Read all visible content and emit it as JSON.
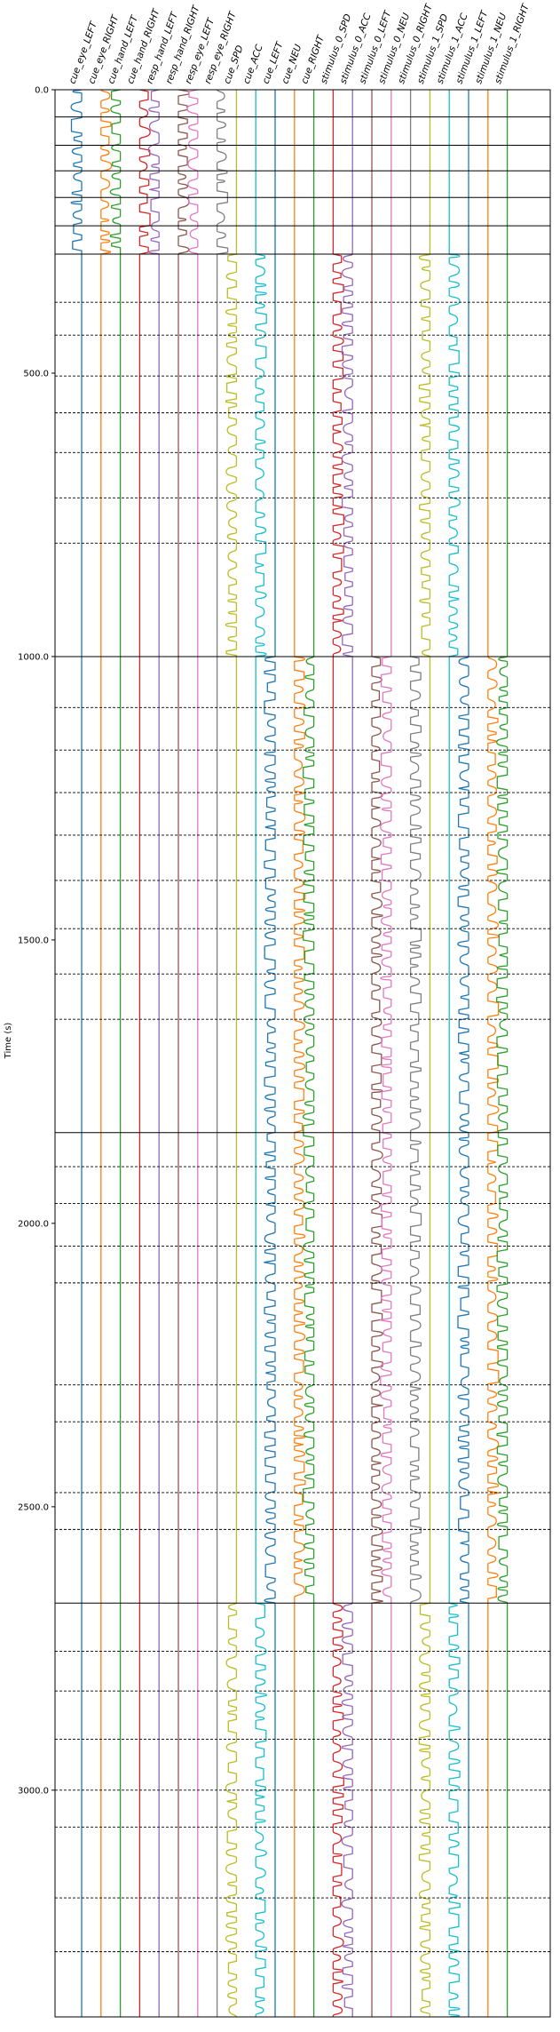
{
  "chart_data": {
    "type": "line",
    "title": "",
    "xlabel": "",
    "ylabel": "Time (s)",
    "ylim": [
      0,
      3400
    ],
    "y_inverted": true,
    "yticks": [
      0,
      500,
      1000,
      1500,
      2000,
      2500,
      3000
    ],
    "ytick_labels": [
      "0.0",
      "500.0",
      "1000.0",
      "1500.0",
      "2000.0",
      "2500.0",
      "3000.0"
    ],
    "grid": false,
    "legend": "none",
    "series": [
      {
        "name": "cue_eye_LEFT",
        "color": "#1f77b4",
        "active": [
          [
            0,
            290
          ]
        ]
      },
      {
        "name": "cue_eye_RIGHT",
        "color": "#ff7f0e",
        "active": [
          [
            0,
            290
          ]
        ]
      },
      {
        "name": "cue_hand_LEFT",
        "color": "#2ca02c",
        "active": [
          [
            0,
            290
          ]
        ]
      },
      {
        "name": "cue_hand_RIGHT",
        "color": "#d62728",
        "active": [
          [
            0,
            290
          ]
        ]
      },
      {
        "name": "resp_hand_LEFT",
        "color": "#9467bd",
        "active": [
          [
            0,
            290
          ]
        ]
      },
      {
        "name": "resp_hand_RIGHT",
        "color": "#8c564b",
        "active": [
          [
            0,
            290
          ]
        ]
      },
      {
        "name": "resp_eye_LEFT",
        "color": "#e377c2",
        "active": [
          [
            0,
            290
          ]
        ]
      },
      {
        "name": "resp_eye_RIGHT",
        "color": "#7f7f7f",
        "active": [
          [
            0,
            290
          ]
        ]
      },
      {
        "name": "cue_SPD",
        "color": "#bcbd22",
        "active": [
          [
            290,
            1000
          ],
          [
            2670,
            3400
          ]
        ]
      },
      {
        "name": "cue_ACC",
        "color": "#17becf",
        "active": [
          [
            290,
            1000
          ],
          [
            2670,
            3400
          ]
        ]
      },
      {
        "name": "cue_LEFT",
        "color": "#1f77b4",
        "active": [
          [
            1000,
            2670
          ]
        ]
      },
      {
        "name": "cue_NEU",
        "color": "#ff7f0e",
        "active": [
          [
            1000,
            2670
          ]
        ]
      },
      {
        "name": "cue_RIGHT",
        "color": "#2ca02c",
        "active": [
          [
            1000,
            2670
          ]
        ]
      },
      {
        "name": "stimulus_0_SPD",
        "color": "#d62728",
        "active": [
          [
            290,
            1000
          ],
          [
            2670,
            3400
          ]
        ]
      },
      {
        "name": "stimulus_0_ACC",
        "color": "#9467bd",
        "active": [
          [
            290,
            1000
          ],
          [
            2670,
            3400
          ]
        ]
      },
      {
        "name": "stimulus_0_LEFT",
        "color": "#8c564b",
        "active": [
          [
            1000,
            2670
          ]
        ]
      },
      {
        "name": "stimulus_0_NEU",
        "color": "#e377c2",
        "active": [
          [
            1000,
            2670
          ]
        ]
      },
      {
        "name": "stimulus_0_RIGHT",
        "color": "#7f7f7f",
        "active": [
          [
            1000,
            2670
          ]
        ]
      },
      {
        "name": "stimulus_1_SPD",
        "color": "#bcbd22",
        "active": [
          [
            290,
            1000
          ],
          [
            2670,
            3400
          ]
        ]
      },
      {
        "name": "stimulus_1_ACC",
        "color": "#17becf",
        "active": [
          [
            290,
            1000
          ],
          [
            2670,
            3400
          ]
        ]
      },
      {
        "name": "stimulus_1_LEFT",
        "color": "#1f77b4",
        "active": [
          [
            1000,
            2670
          ]
        ]
      },
      {
        "name": "stimulus_1_NEU",
        "color": "#ff7f0e",
        "active": [
          [
            1000,
            2670
          ]
        ]
      },
      {
        "name": "stimulus_1_RIGHT",
        "color": "#2ca02c",
        "active": [
          [
            1000,
            2670
          ]
        ]
      }
    ],
    "run_boundaries": [
      0,
      48,
      98,
      143,
      190,
      240,
      290,
      1000,
      1840,
      2670,
      3400
    ],
    "block_boundaries": [
      375,
      433,
      505,
      570,
      640,
      720,
      800,
      1090,
      1165,
      1240,
      1315,
      1395,
      1480,
      1560,
      1640,
      1900,
      1965,
      2040,
      2105,
      2285,
      2350,
      2475,
      2540,
      2755,
      2825,
      2910,
      3000,
      3065,
      3190,
      3285
    ]
  }
}
